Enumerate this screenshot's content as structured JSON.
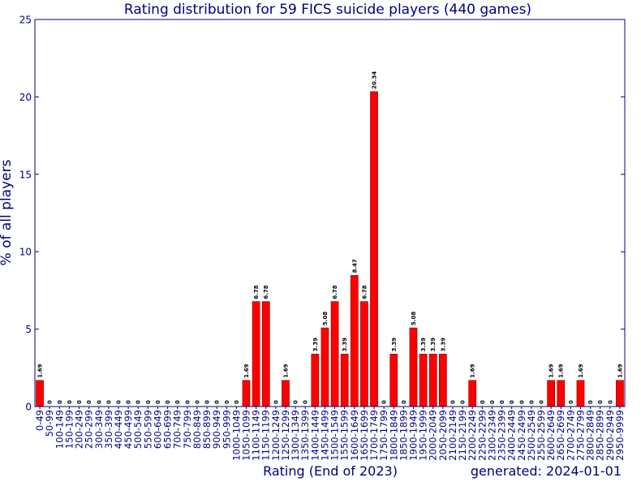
{
  "chart_data": {
    "type": "bar",
    "title": "Rating distribution for 59 FICS suicide players (440 games)",
    "xlabel": "Rating (End of 2023)",
    "ylabel": "% of all players",
    "footer": "generated: 2024-01-01",
    "ylim": [
      0,
      25
    ],
    "yticks": [
      0,
      5,
      10,
      15,
      20,
      25
    ],
    "grid": false,
    "legend": "none",
    "colors": {
      "bar": "#ff0000",
      "bar_edge": "#800000",
      "axis": "#000080",
      "text": "#000080",
      "label": "#000000"
    },
    "categories": [
      "0-49",
      "50-99",
      "100-149",
      "150-199",
      "200-249",
      "250-299",
      "300-349",
      "350-399",
      "400-449",
      "450-499",
      "500-549",
      "550-599",
      "600-649",
      "650-699",
      "700-749",
      "750-799",
      "800-849",
      "850-899",
      "900-949",
      "950-999",
      "1000-1049",
      "1050-1099",
      "1100-1149",
      "1150-1199",
      "1200-1249",
      "1250-1299",
      "1300-1349",
      "1350-1399",
      "1400-1449",
      "1450-1499",
      "1500-1549",
      "1550-1599",
      "1600-1649",
      "1650-1699",
      "1700-1749",
      "1750-1799",
      "1800-1849",
      "1850-1899",
      "1900-1949",
      "1950-1999",
      "2000-2049",
      "2050-2099",
      "2100-2149",
      "2150-2199",
      "2200-2249",
      "2250-2299",
      "2300-2349",
      "2350-2399",
      "2400-2449",
      "2450-2499",
      "2500-2549",
      "2550-2599",
      "2600-2649",
      "2650-2699",
      "2700-2749",
      "2750-2799",
      "2800-2849",
      "2850-2899",
      "2900-2949",
      "2950-9999"
    ],
    "values": [
      1.69,
      0,
      0,
      0,
      0,
      0,
      0,
      0,
      0,
      0,
      0,
      0,
      0,
      0,
      0,
      0,
      0,
      0,
      0,
      0,
      0,
      1.69,
      6.78,
      6.78,
      0,
      1.69,
      0,
      0,
      3.39,
      5.08,
      6.78,
      3.39,
      8.47,
      6.78,
      20.34,
      0,
      3.39,
      0,
      5.08,
      3.39,
      3.39,
      3.39,
      0,
      0,
      1.69,
      0,
      0,
      0,
      0,
      0,
      0,
      0,
      1.69,
      1.69,
      0,
      1.69,
      0,
      0,
      0,
      1.69
    ],
    "data_labels": [
      "1.69",
      "0",
      "0",
      "0",
      "0",
      "0",
      "0",
      "0",
      "0",
      "0",
      "0",
      "0",
      "0",
      "0",
      "0",
      "0",
      "0",
      "0",
      "0",
      "0",
      "0",
      "1.69",
      "6.78",
      "6.78",
      "0",
      "1.69",
      "0",
      "0",
      "3.39",
      "5.08",
      "6.78",
      "3.39",
      "8.47",
      "6.78",
      "20.34",
      "0",
      "3.39",
      "0",
      "5.08",
      "3.39",
      "3.39",
      "3.39",
      "0",
      "0",
      "1.69",
      "0",
      "0",
      "0",
      "0",
      "0",
      "0",
      "0",
      "1.69",
      "1.69",
      "0",
      "1.69",
      "0",
      "0",
      "0",
      "1.69"
    ]
  }
}
